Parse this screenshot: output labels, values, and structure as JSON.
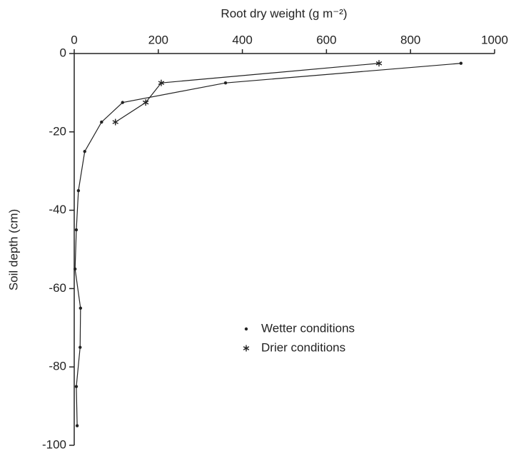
{
  "chart_data": {
    "type": "line",
    "x_label": "Root dry weight (g m⁻²)",
    "y_label": "Soil depth (cm)",
    "x_axis_position": "top",
    "xlim": [
      0,
      1000
    ],
    "xticks": [
      0,
      200,
      400,
      600,
      800,
      1000
    ],
    "ylim": [
      -100,
      0
    ],
    "yticks": [
      0,
      -20,
      -40,
      -60,
      -80,
      -100
    ],
    "grid": false,
    "series": [
      {
        "name": "Wetter conditions",
        "color": "#222222",
        "marker": "dot",
        "x": [
          920,
          360,
          115,
          65,
          25,
          10,
          5,
          2,
          15,
          14,
          5,
          7
        ],
        "values": [
          -2.5,
          -7.5,
          -12.5,
          -17.5,
          -25,
          -35,
          -45,
          -55,
          -65,
          -75,
          -85,
          -95
        ]
      },
      {
        "name": "Drier conditions",
        "color": "#222222",
        "marker": "asterisk",
        "x": [
          725,
          207,
          170,
          98
        ],
        "values": [
          -2.5,
          -7.5,
          -12.5,
          -17.5
        ]
      }
    ]
  }
}
